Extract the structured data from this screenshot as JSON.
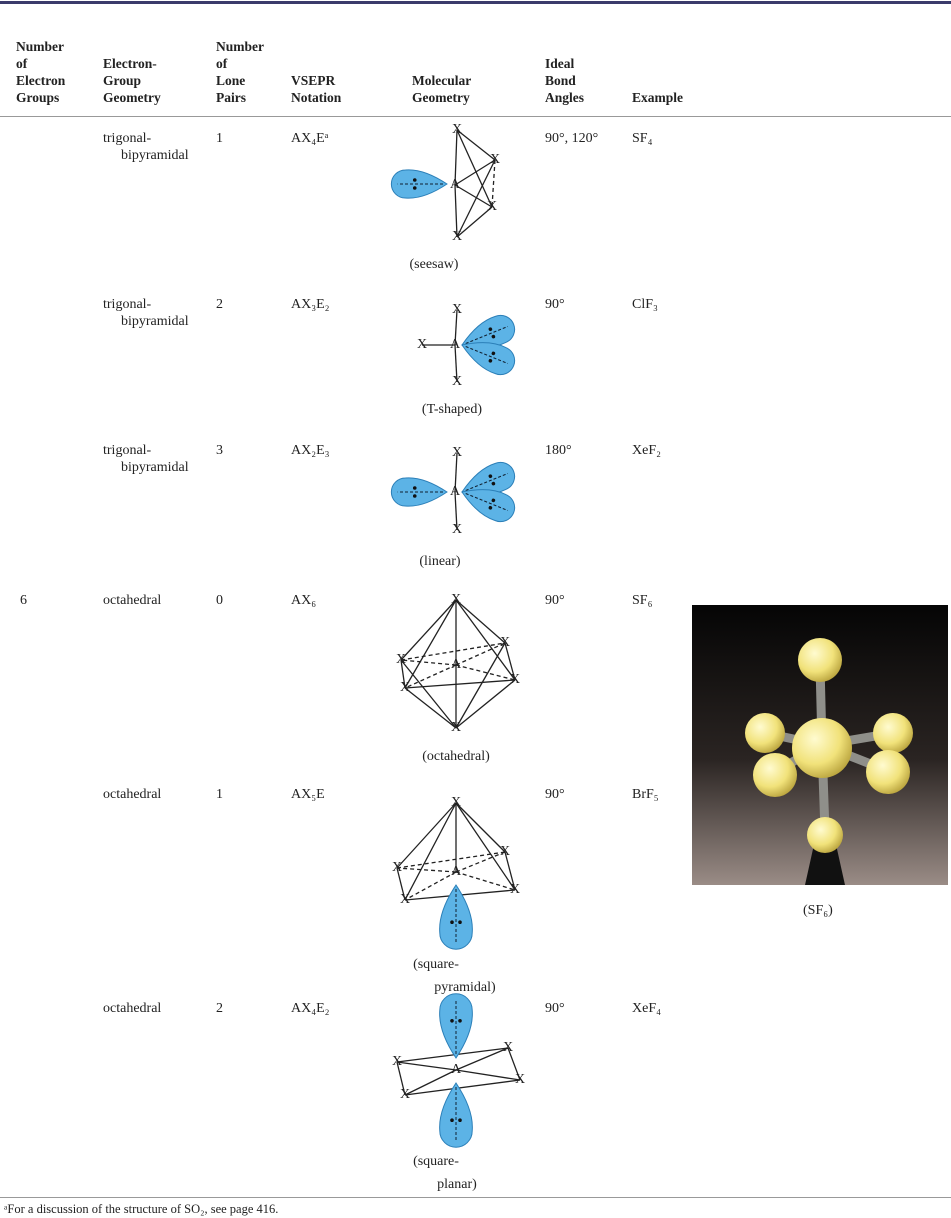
{
  "header": {
    "columns": [
      [
        "Number",
        "of",
        "Electron",
        "Groups"
      ],
      [
        "Electron-",
        "Group",
        "Geometry"
      ],
      [
        "Number",
        "of",
        "Lone",
        "Pairs"
      ],
      [
        "VSEPR",
        "Notation"
      ],
      [
        "Molecular",
        "Geometry"
      ],
      [
        "Ideal",
        "Bond",
        "Angles"
      ],
      [
        "Example"
      ]
    ]
  },
  "atoms": {
    "ligand": "X",
    "central": "A"
  },
  "rows": [
    {
      "geometry": [
        "trigonal-",
        "bipyramidal"
      ],
      "lone_pairs": 1,
      "notation": "AX₄Eᵃ",
      "shape": [
        "(seesaw)"
      ],
      "angles": "90°, 120°",
      "example": "SF₄"
    },
    {
      "geometry": [
        "trigonal-",
        "bipyramidal"
      ],
      "lone_pairs": 2,
      "notation": "AX₃E₂",
      "shape": [
        "(T-shaped)"
      ],
      "angles": "90°",
      "example": "ClF₃"
    },
    {
      "geometry": [
        "trigonal-",
        "bipyramidal"
      ],
      "lone_pairs": 3,
      "notation": "AX₂E₃",
      "shape": [
        "(linear)"
      ],
      "angles": "180°",
      "example": "XeF₂"
    },
    {
      "electron_groups": 6,
      "geometry": [
        "octahedral"
      ],
      "lone_pairs": 0,
      "notation": "AX₆",
      "shape": [
        "(octahedral)"
      ],
      "angles": "90°",
      "example": "SF₆"
    },
    {
      "geometry": [
        "octahedral"
      ],
      "lone_pairs": 1,
      "notation": "AX₅E",
      "shape": [
        "(square-",
        "pyramidal)"
      ],
      "angles": "90°",
      "example": "BrF₅"
    },
    {
      "geometry": [
        "octahedral"
      ],
      "lone_pairs": 2,
      "notation": "AX₄E₂",
      "shape": [
        "(square-",
        "planar)"
      ],
      "angles": "90°",
      "example": "XeF₄"
    }
  ],
  "photo": {
    "caption": "(SF₆)"
  },
  "footnote": "ᵃFor a discussion of the structure of SO₂, see page 416."
}
